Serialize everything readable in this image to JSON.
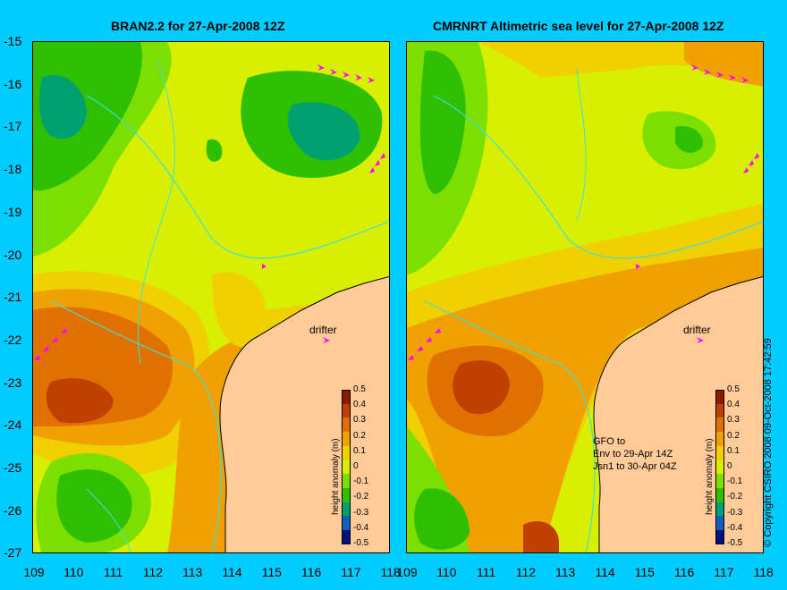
{
  "left_panel": {
    "title": "BRAN2.2 for 27-Apr-2008 12Z"
  },
  "right_panel": {
    "title": "CMRNRT Altimetric sea level  for 27-Apr-2008 12Z"
  },
  "y_ticks": [
    "-15",
    "-16",
    "-17",
    "-18",
    "-19",
    "-20",
    "-21",
    "-22",
    "-23",
    "-24",
    "-25",
    "-26",
    "-27"
  ],
  "x_ticks_left": [
    "109",
    "110",
    "111",
    "112",
    "113",
    "114",
    "115",
    "116",
    "117",
    "118"
  ],
  "x_ticks_right": [
    "109",
    "110",
    "111",
    "112",
    "113",
    "114",
    "115",
    "116",
    "117",
    "118"
  ],
  "colorbar": {
    "label": "height anomaly (m)",
    "ticks": [
      "0.5",
      "0.4",
      "0.3",
      "0.2",
      "0.1",
      "0",
      "-0.1",
      "-0.2",
      "-0.3",
      "-0.4",
      "-0.5"
    ],
    "colors": [
      "#8b1a00",
      "#c04000",
      "#e07000",
      "#f0a000",
      "#f0d000",
      "#d8f000",
      "#7be000",
      "#2ec000",
      "#00a070",
      "#1060c0",
      "#001080"
    ]
  },
  "drifter_label": "drifter",
  "gfo_note": [
    "GFO to",
    "Env to 29-Apr 14Z",
    "Jsn1 to 30-Apr 04Z"
  ],
  "copyright": "© Copyright CSIRO 2008   09-Oct-2008 17:42:59",
  "colors": {
    "background": "#00ccff",
    "land": "#ffcc99",
    "coast_shelf": "#c8a880",
    "drifter_arrow": "#ff00ff",
    "bathymetry": "#40e0d0"
  }
}
